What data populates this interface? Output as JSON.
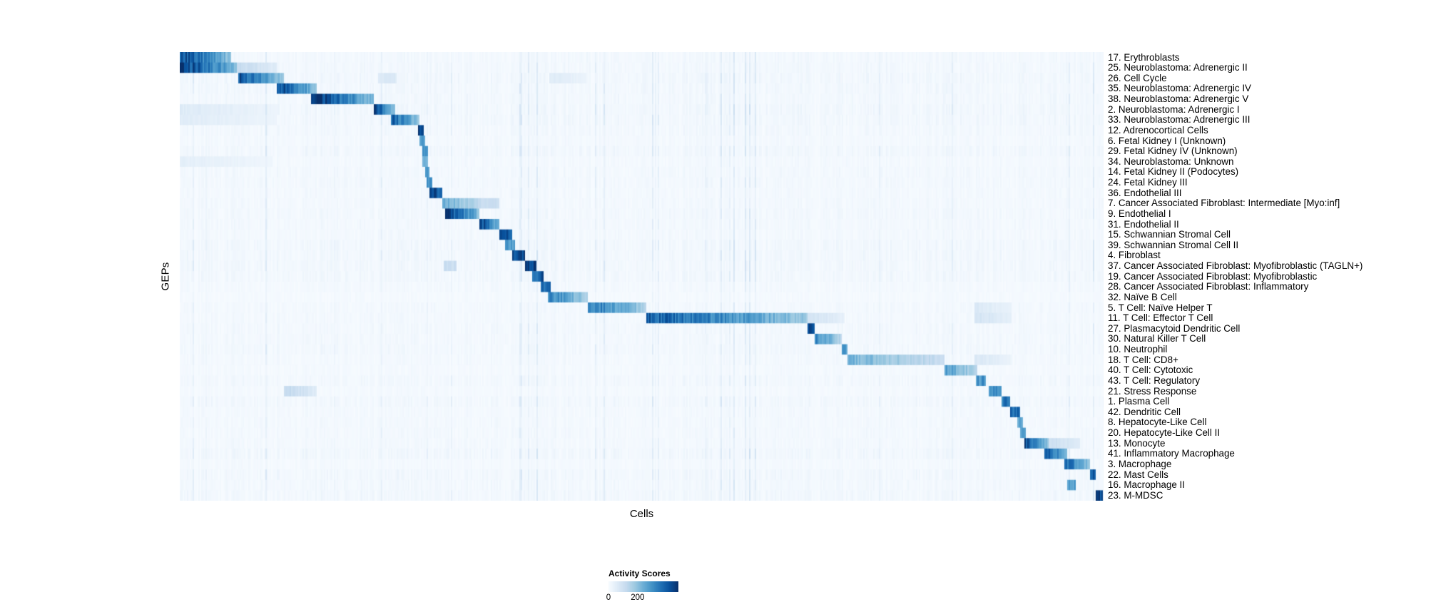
{
  "figure": {
    "y_axis_label": "GEPs",
    "x_axis_label": "Cells"
  },
  "legend": {
    "title": "Activity Scores",
    "tick_min": "0",
    "tick_max": "200"
  },
  "chart_data": {
    "type": "heatmap",
    "title": "",
    "xlabel": "Cells",
    "ylabel": "GEPs",
    "legend": {
      "title": "Activity Scores",
      "ticks": [
        0,
        200
      ]
    },
    "colormap": {
      "name": "Blues",
      "domain_max": 480,
      "stops": [
        "#f7fbff",
        "#deebf7",
        "#c6dbef",
        "#9ecae1",
        "#6baed6",
        "#4292c6",
        "#2171b5",
        "#08519c",
        "#08306b"
      ]
    },
    "rows": [
      {
        "label": "17. Erythroblasts",
        "blocks": [
          [
            0.0,
            0.055,
            430
          ]
        ]
      },
      {
        "label": "25. Neuroblastoma: Adrenergic II",
        "blocks": [
          [
            0.0,
            0.062,
            460
          ],
          [
            0.062,
            0.105,
            120
          ]
        ]
      },
      {
        "label": "26. Cell Cycle",
        "blocks": [
          [
            0.063,
            0.112,
            420
          ],
          [
            0.215,
            0.235,
            70
          ],
          [
            0.4,
            0.44,
            60
          ]
        ]
      },
      {
        "label": "35. Neuroblastoma: Adrenergic IV",
        "blocks": [
          [
            0.105,
            0.149,
            440
          ]
        ]
      },
      {
        "label": "38. Neuroblastoma: Adrenergic V",
        "blocks": [
          [
            0.142,
            0.21,
            470
          ]
        ]
      },
      {
        "label": "2. Neuroblastoma: Adrenergic I",
        "blocks": [
          [
            0.0,
            0.105,
            60
          ],
          [
            0.21,
            0.233,
            460
          ]
        ]
      },
      {
        "label": "33. Neuroblastoma: Adrenergic III",
        "blocks": [
          [
            0.0,
            0.105,
            55
          ],
          [
            0.228,
            0.259,
            400
          ]
        ]
      },
      {
        "label": "12. Adrenocortical Cells",
        "blocks": [
          [
            0.258,
            0.264,
            470
          ]
        ]
      },
      {
        "label": "6. Fetal Kidney I (Unknown)",
        "blocks": [
          [
            0.26,
            0.266,
            300
          ]
        ]
      },
      {
        "label": "29. Fetal Kidney IV (Unknown)",
        "blocks": [
          [
            0.262,
            0.268,
            280
          ]
        ]
      },
      {
        "label": "34. Neuroblastoma: Unknown",
        "blocks": [
          [
            0.0,
            0.1,
            45
          ],
          [
            0.263,
            0.269,
            260
          ]
        ]
      },
      {
        "label": "14. Fetal Kidney II (Podocytes)",
        "blocks": [
          [
            0.265,
            0.271,
            320
          ]
        ]
      },
      {
        "label": "24. Fetal Kidney III",
        "blocks": [
          [
            0.267,
            0.273,
            300
          ]
        ]
      },
      {
        "label": "36. Endothelial III",
        "blocks": [
          [
            0.27,
            0.284,
            420
          ]
        ]
      },
      {
        "label": "7. Cancer Associated Fibroblast: Intermediate [Myo:inf]",
        "blocks": [
          [
            0.284,
            0.33,
            240
          ],
          [
            0.33,
            0.346,
            110
          ]
        ]
      },
      {
        "label": "9. Endothelial I",
        "blocks": [
          [
            0.288,
            0.325,
            460
          ]
        ]
      },
      {
        "label": "31. Endothelial II",
        "blocks": [
          [
            0.325,
            0.346,
            460
          ]
        ]
      },
      {
        "label": "15. Schwannian Stromal Cell",
        "blocks": [
          [
            0.346,
            0.36,
            450
          ]
        ]
      },
      {
        "label": "39. Schwannian Stromal Cell II",
        "blocks": [
          [
            0.352,
            0.363,
            300
          ]
        ]
      },
      {
        "label": "4. Fibroblast",
        "blocks": [
          [
            0.36,
            0.374,
            450
          ]
        ]
      },
      {
        "label": "37. Cancer Associated Fibroblast: Myofibroblastic (TAGLN+)",
        "blocks": [
          [
            0.286,
            0.3,
            110
          ],
          [
            0.374,
            0.386,
            450
          ]
        ]
      },
      {
        "label": "19. Cancer Associated Fibroblast: Myofibroblastic",
        "blocks": [
          [
            0.382,
            0.394,
            410
          ]
        ]
      },
      {
        "label": "28. Cancer Associated Fibroblast: Inflammatory",
        "blocks": [
          [
            0.39,
            0.401,
            360
          ]
        ]
      },
      {
        "label": "32. Naïve B Cell",
        "blocks": [
          [
            0.399,
            0.442,
            330
          ]
        ]
      },
      {
        "label": "5. T Cell: Naïve Helper T",
        "blocks": [
          [
            0.442,
            0.505,
            350
          ],
          [
            0.86,
            0.9,
            70
          ]
        ]
      },
      {
        "label": "11. T Cell: Effector T Cell",
        "blocks": [
          [
            0.505,
            0.68,
            400
          ],
          [
            0.68,
            0.72,
            90
          ],
          [
            0.86,
            0.9,
            90
          ]
        ]
      },
      {
        "label": "27. Plasmacytoid Dendritic Cell",
        "blocks": [
          [
            0.68,
            0.688,
            450
          ]
        ]
      },
      {
        "label": "30. Natural Killer T Cell",
        "blocks": [
          [
            0.688,
            0.716,
            320
          ]
        ]
      },
      {
        "label": "10. Neutrophil",
        "blocks": [
          [
            0.716,
            0.723,
            300
          ]
        ]
      },
      {
        "label": "18. T Cell: CD8+",
        "blocks": [
          [
            0.723,
            0.828,
            230
          ],
          [
            0.86,
            0.9,
            70
          ]
        ]
      },
      {
        "label": "40. T Cell: Cytotoxic",
        "blocks": [
          [
            0.828,
            0.864,
            280
          ]
        ]
      },
      {
        "label": "43. T Cell: Regulatory",
        "blocks": [
          [
            0.862,
            0.873,
            300
          ]
        ]
      },
      {
        "label": "21. Stress Response",
        "blocks": [
          [
            0.112,
            0.148,
            130
          ],
          [
            0.875,
            0.889,
            330
          ]
        ]
      },
      {
        "label": "1. Plasma Cell",
        "blocks": [
          [
            0.889,
            0.899,
            360
          ]
        ]
      },
      {
        "label": "42. Dendritic Cell",
        "blocks": [
          [
            0.899,
            0.909,
            380
          ]
        ]
      },
      {
        "label": "8. Hepatocyte-Like Cell",
        "blocks": [
          [
            0.906,
            0.912,
            270
          ]
        ]
      },
      {
        "label": "20. Hepatocyte-Like Cell II",
        "blocks": [
          [
            0.91,
            0.916,
            270
          ]
        ]
      },
      {
        "label": "13. Monocyte",
        "blocks": [
          [
            0.915,
            0.941,
            430
          ],
          [
            0.941,
            0.975,
            110
          ]
        ]
      },
      {
        "label": "41. Inflammatory Macrophage",
        "blocks": [
          [
            0.936,
            0.961,
            420
          ]
        ]
      },
      {
        "label": "3. Macrophage",
        "blocks": [
          [
            0.958,
            0.986,
            380
          ]
        ]
      },
      {
        "label": "22. Mast Cells",
        "blocks": [
          [
            0.985,
            0.991,
            420
          ]
        ]
      },
      {
        "label": "16. Macrophage II",
        "blocks": [
          [
            0.96,
            0.97,
            280
          ]
        ]
      },
      {
        "label": "23. M-MDSC",
        "blocks": [
          [
            0.991,
            1.0,
            470
          ]
        ]
      }
    ]
  }
}
